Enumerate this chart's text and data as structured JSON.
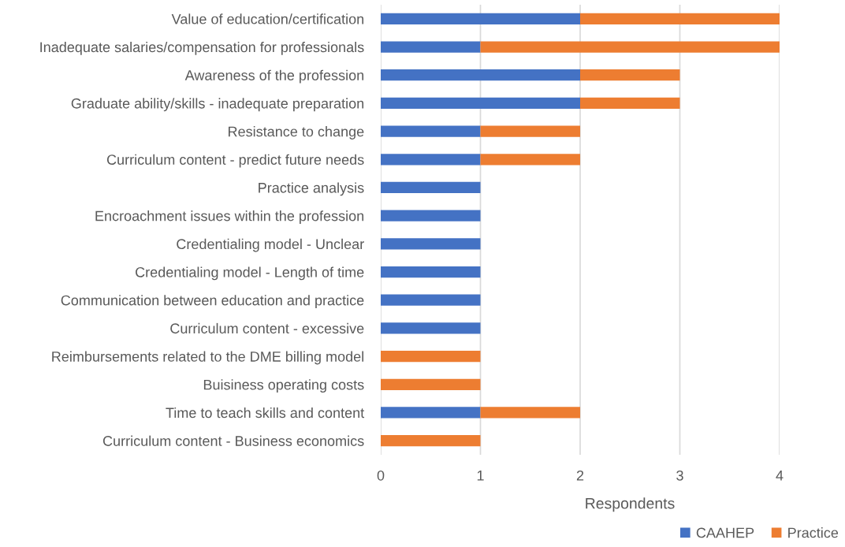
{
  "chart_data": {
    "type": "bar",
    "orientation": "horizontal",
    "stacked": true,
    "xlabel": "Respondents",
    "categories": [
      "Value of education/certification",
      "Inadequate salaries/compensation for professionals",
      "Awareness of the profession",
      "Graduate ability/skills - inadequate preparation",
      "Resistance to change",
      "Curriculum content - predict future needs",
      "Practice analysis",
      "Encroachment issues within the profession",
      "Credentialing model - Unclear",
      "Credentialing model - Length of time",
      "Communication between education and practice",
      "Curriculum content - excessive",
      "Reimbursements related to the DME billing model",
      "Buisiness operating costs",
      "Time to teach skills and content",
      "Curriculum content - Business economics"
    ],
    "series": [
      {
        "name": "CAAHEP",
        "color": "#4472c4",
        "values": [
          2,
          1,
          2,
          2,
          1,
          1,
          1,
          1,
          1,
          1,
          1,
          1,
          null,
          null,
          1,
          null
        ]
      },
      {
        "name": "Practice",
        "color": "#ed7d31",
        "values": [
          2,
          3,
          1,
          1,
          1,
          1,
          null,
          null,
          null,
          null,
          null,
          null,
          1,
          1,
          1,
          1
        ]
      }
    ],
    "xlim": [
      0,
      4
    ],
    "xticks": [
      0,
      1,
      2,
      3,
      4
    ],
    "grid": "x",
    "legend": "bottom right"
  }
}
